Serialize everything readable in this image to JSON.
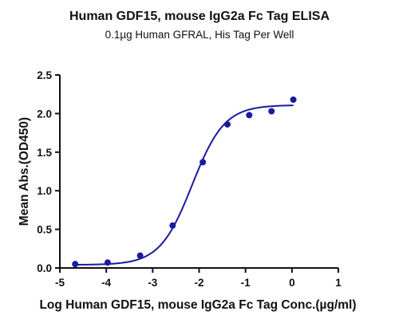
{
  "chart_data": {
    "type": "scatter",
    "title": "Human GDF15, mouse IgG2a Fc Tag ELISA",
    "subtitle": "0.1µg Human GFRAL, His Tag Per Well",
    "xlabel": "Log Human GDF15, mouse IgG2a Fc Tag Conc.(µg/ml)",
    "ylabel": "Mean Abs.(OD450)",
    "xlim": [
      -5,
      1
    ],
    "ylim": [
      0,
      2.5
    ],
    "xticks": [
      "-5",
      "-4",
      "-3",
      "-2",
      "-1",
      "0",
      "1"
    ],
    "yticks": [
      "0.0",
      "0.5",
      "1.0",
      "1.5",
      "2.0",
      "2.5"
    ],
    "grid": false,
    "series": [
      {
        "color": "#1a1aa0",
        "points": [
          {
            "x": -4.67,
            "y": 0.05
          },
          {
            "x": -3.97,
            "y": 0.07
          },
          {
            "x": -3.27,
            "y": 0.16
          },
          {
            "x": -2.57,
            "y": 0.55
          },
          {
            "x": -1.92,
            "y": 1.37
          },
          {
            "x": -1.39,
            "y": 1.86
          },
          {
            "x": -0.92,
            "y": 1.98
          },
          {
            "x": -0.44,
            "y": 2.03
          },
          {
            "x": 0.03,
            "y": 2.18
          }
        ],
        "fit_curve": {
          "model": "4PL",
          "bottom": 0.04,
          "top": 2.11,
          "log_ec50": -2.15,
          "hill_slope": 1.25,
          "x_range": [
            -4.7,
            0.03
          ]
        }
      }
    ]
  }
}
